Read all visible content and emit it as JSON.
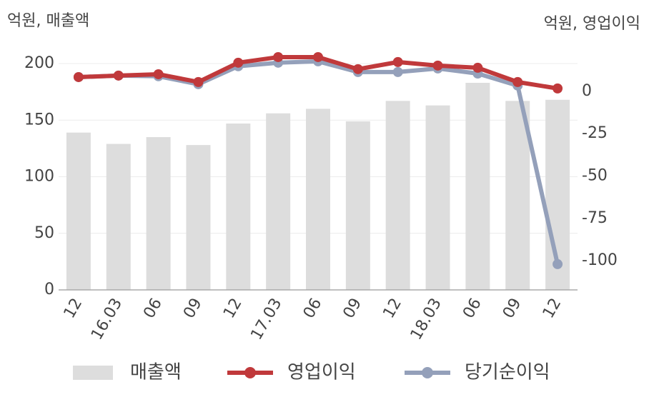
{
  "chart_data": {
    "type": "combo",
    "y_label": "억원, 매출액",
    "y2_label": "억원, 영업이익",
    "categories": [
      "12",
      "16.03",
      "06",
      "09",
      "12",
      "17.03",
      "06",
      "09",
      "12",
      "18.03",
      "06",
      "09",
      "12"
    ],
    "series": [
      {
        "name": "매출액",
        "type": "bar",
        "color": "#dddddd",
        "values": [
          139,
          129,
          135,
          128,
          147,
          156,
          160,
          149,
          167,
          163,
          183,
          167,
          168
        ]
      },
      {
        "name": "영업이익",
        "type": "line",
        "axis": "y2",
        "color": "#c0393b",
        "values": [
          8.4,
          9.3,
          10.1,
          5.5,
          16.9,
          20.2,
          20.2,
          13.1,
          17.3,
          15.2,
          13.9,
          5.5,
          1.7
        ]
      },
      {
        "name": "당기순이익",
        "type": "line",
        "axis": "y2",
        "color": "#94a0ba",
        "values": [
          8.4,
          9.3,
          8.9,
          4.2,
          14.8,
          16.9,
          17.7,
          11.4,
          11.4,
          13.5,
          10.5,
          3.4,
          -102
        ]
      }
    ],
    "ylim": [
      0,
      200
    ],
    "yticks": [
      0,
      50,
      100,
      150,
      200
    ],
    "y2lim": [
      -117.2,
      16.4
    ],
    "y2ticks": [
      -100,
      -75,
      -50,
      -25,
      0
    ],
    "grid": true,
    "legend": "bottom"
  }
}
